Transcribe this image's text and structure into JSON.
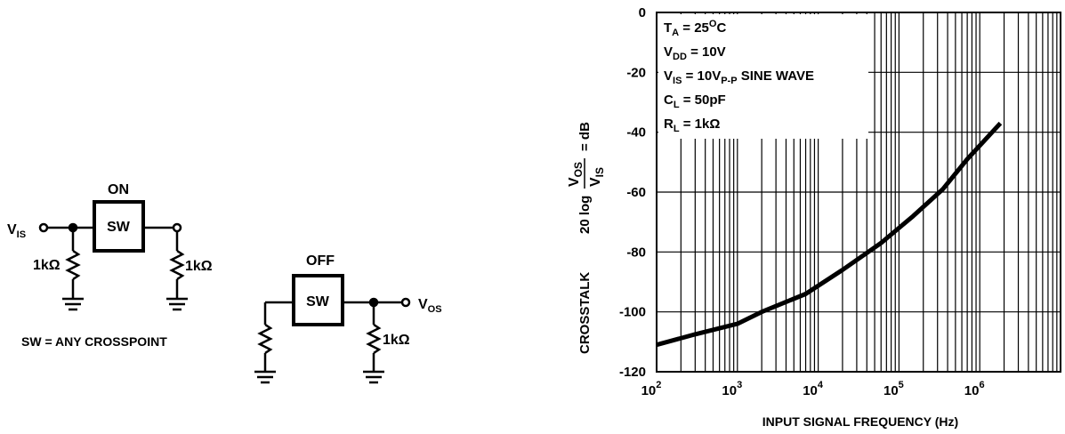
{
  "schematic": {
    "on_label": "ON",
    "off_label": "OFF",
    "sw_label": "SW",
    "vis_main": "V",
    "vis_sub": "IS",
    "vos_main": "V",
    "vos_sub": "OS",
    "r_on_left": "1kΩ",
    "r_on_right": "1kΩ",
    "r_off_right": "1kΩ",
    "note": "SW = ANY CROSSPOINT"
  },
  "chart_data": {
    "type": "line",
    "x_scale": "log",
    "xlim": [
      100,
      10000000
    ],
    "ylim": [
      -120,
      0
    ],
    "grid": true,
    "xlabel": "INPUT SIGNAL FREQUENCY (Hz)",
    "ylabel": {
      "prefix": "CROSSTALK",
      "formula_left": "20 log",
      "numerator_main": "V",
      "numerator_sub": "OS",
      "denominator_main": "V",
      "denominator_sub": "IS",
      "suffix": "= dB"
    },
    "x_ticks": [
      {
        "base": "10",
        "exp": "2",
        "value": 100
      },
      {
        "base": "10",
        "exp": "3",
        "value": 1000
      },
      {
        "base": "10",
        "exp": "4",
        "value": 10000
      },
      {
        "base": "10",
        "exp": "5",
        "value": 100000
      },
      {
        "base": "10",
        "exp": "6",
        "value": 1000000
      }
    ],
    "y_ticks": [
      "0",
      "-20",
      "-40",
      "-60",
      "-80",
      "-100",
      "-120"
    ],
    "y_tick_values": [
      0,
      -20,
      -40,
      -60,
      -80,
      -100,
      -120
    ],
    "series": [
      {
        "x": [
          100,
          300,
          1000,
          2000,
          7000,
          20000,
          60000,
          150000,
          350000,
          700000,
          1800000
        ],
        "y": [
          -111,
          -107.5,
          -104,
          -100,
          -94,
          -86,
          -77,
          -68,
          -59,
          -49,
          -37
        ]
      }
    ],
    "annotations": [
      {
        "main": "T",
        "sub": "A",
        "rest": " = 25",
        "sup": "O",
        "tail": "C"
      },
      {
        "main": "V",
        "sub": "DD",
        "rest": " = 10V",
        "sup": "",
        "tail": ""
      },
      {
        "main": "V",
        "sub": "IS",
        "rest": " = 10V",
        "sup": "",
        "tail": "",
        "sub2": "P-P",
        "tail2": " SINE WAVE"
      },
      {
        "main": "C",
        "sub": "L",
        "rest": " = 50pF",
        "sup": "",
        "tail": ""
      },
      {
        "main": "R",
        "sub": "L",
        "rest": " = 1kΩ",
        "sup": "",
        "tail": ""
      }
    ]
  }
}
